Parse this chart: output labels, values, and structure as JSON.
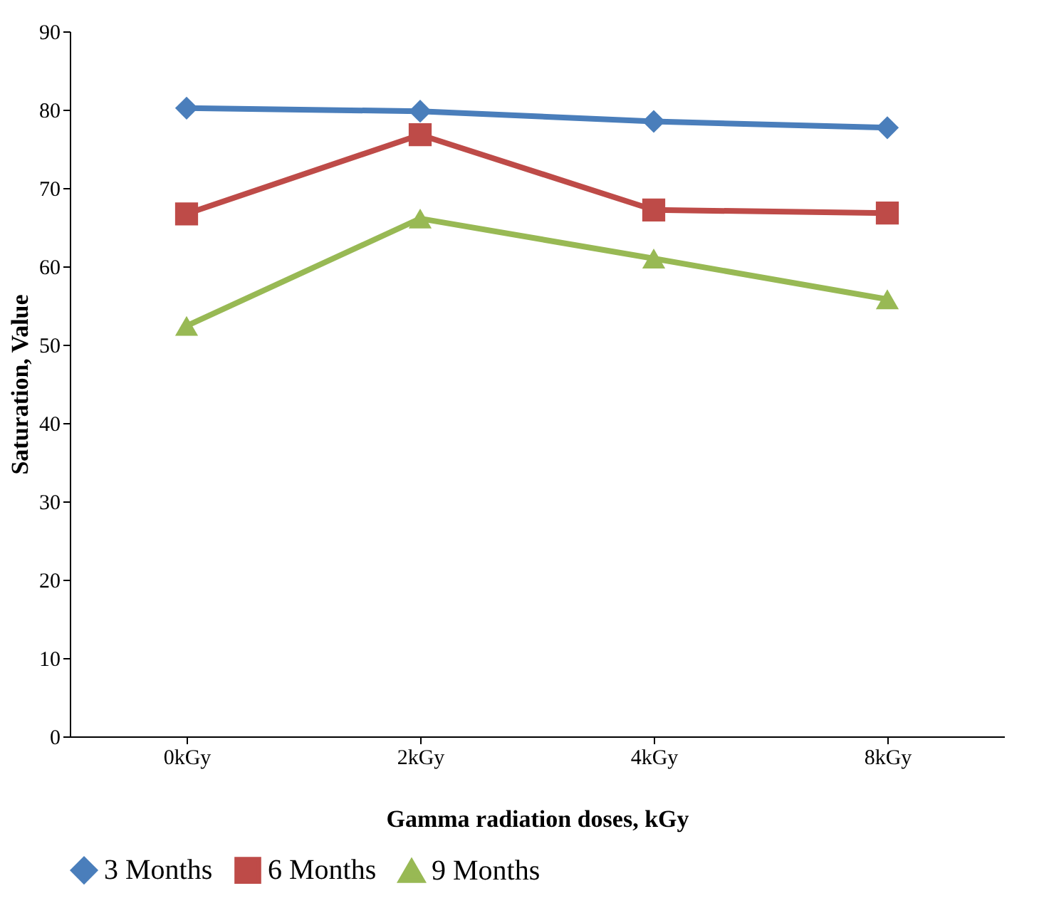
{
  "chart_data": {
    "type": "line",
    "xlabel": "Gamma radiation doses, kGy",
    "ylabel": "Saturation, Value",
    "categories": [
      "0kGy",
      "2kGy",
      "4kGy",
      "8kGy"
    ],
    "series": [
      {
        "name": "3 Months",
        "color": "#4a7ebb",
        "marker": "diamond",
        "values": [
          80.2,
          79.8,
          78.5,
          77.7
        ]
      },
      {
        "name": "6 Months",
        "color": "#be4b48",
        "marker": "square",
        "values": [
          66.7,
          76.8,
          67.2,
          66.8
        ]
      },
      {
        "name": "9 Months",
        "color": "#98b954",
        "marker": "triangle",
        "values": [
          52.4,
          66.1,
          61.0,
          55.8
        ]
      }
    ],
    "ylim": [
      0,
      90
    ],
    "yticks": [
      0,
      10,
      20,
      30,
      40,
      50,
      60,
      70,
      80,
      90
    ],
    "grid": false,
    "legend": "bottom",
    "line_style": "solid"
  }
}
